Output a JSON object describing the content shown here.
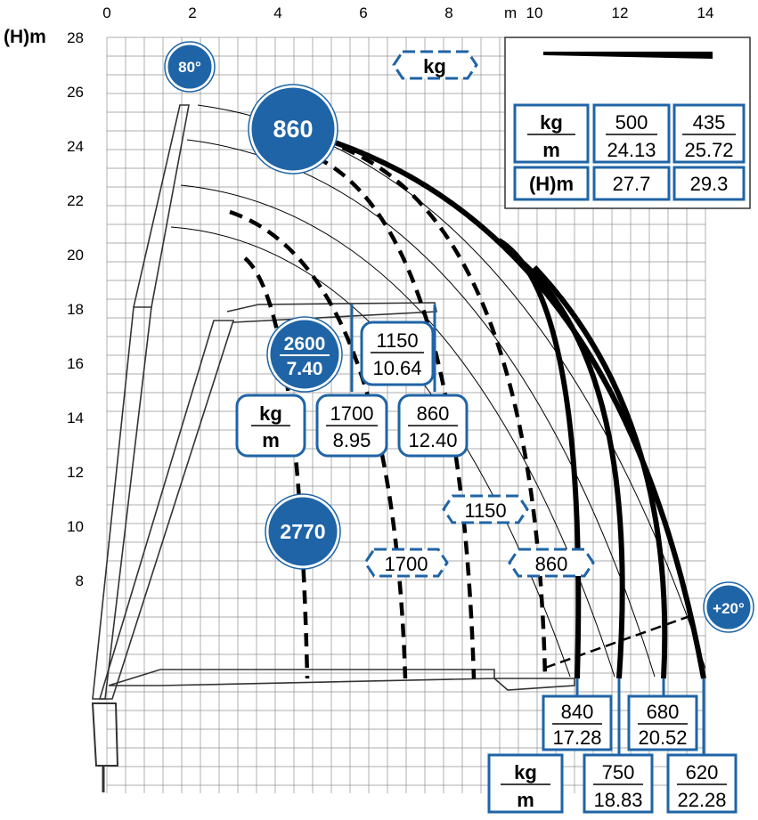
{
  "chart_data": {
    "type": "line",
    "title": "",
    "x_unit_label": "m",
    "y_unit_label": "(H)m",
    "x_ticks": [
      "0",
      "2",
      "4",
      "6",
      "8",
      "10",
      "12",
      "14"
    ],
    "y_ticks": [
      "28",
      "26",
      "24",
      "22",
      "20",
      "18",
      "16",
      "14",
      "12",
      "10",
      "8"
    ],
    "xlim": [
      0,
      14
    ],
    "ylim": [
      0,
      28
    ],
    "grid": true,
    "kg_label": "kg",
    "m_label": "m",
    "h_label": "(H)m",
    "angle_max": "80°",
    "angle_min": "+20°",
    "load_circles": [
      {
        "kg": "860"
      },
      {
        "kg": "2600",
        "m": "7.40"
      },
      {
        "kg": "2770"
      }
    ],
    "upper_loads": [
      {
        "kg": "1150",
        "m": "10.64"
      },
      {
        "kg": "1700",
        "m": "8.95"
      },
      {
        "kg": "860",
        "m": "12.40"
      }
    ],
    "curve_labels": [
      "1150",
      "1700",
      "860"
    ],
    "inset_table": [
      {
        "kg": "500",
        "m": "24.13",
        "h": "27.7"
      },
      {
        "kg": "435",
        "m": "25.72",
        "h": "29.3"
      }
    ],
    "bottom_loads": [
      {
        "kg": "840",
        "m": "17.28"
      },
      {
        "kg": "680",
        "m": "20.52"
      },
      {
        "kg": "750",
        "m": "18.83"
      },
      {
        "kg": "620",
        "m": "22.28"
      }
    ],
    "colors": {
      "accent": "#1f64a6",
      "grid": "#909090",
      "curve": "#000000"
    }
  }
}
